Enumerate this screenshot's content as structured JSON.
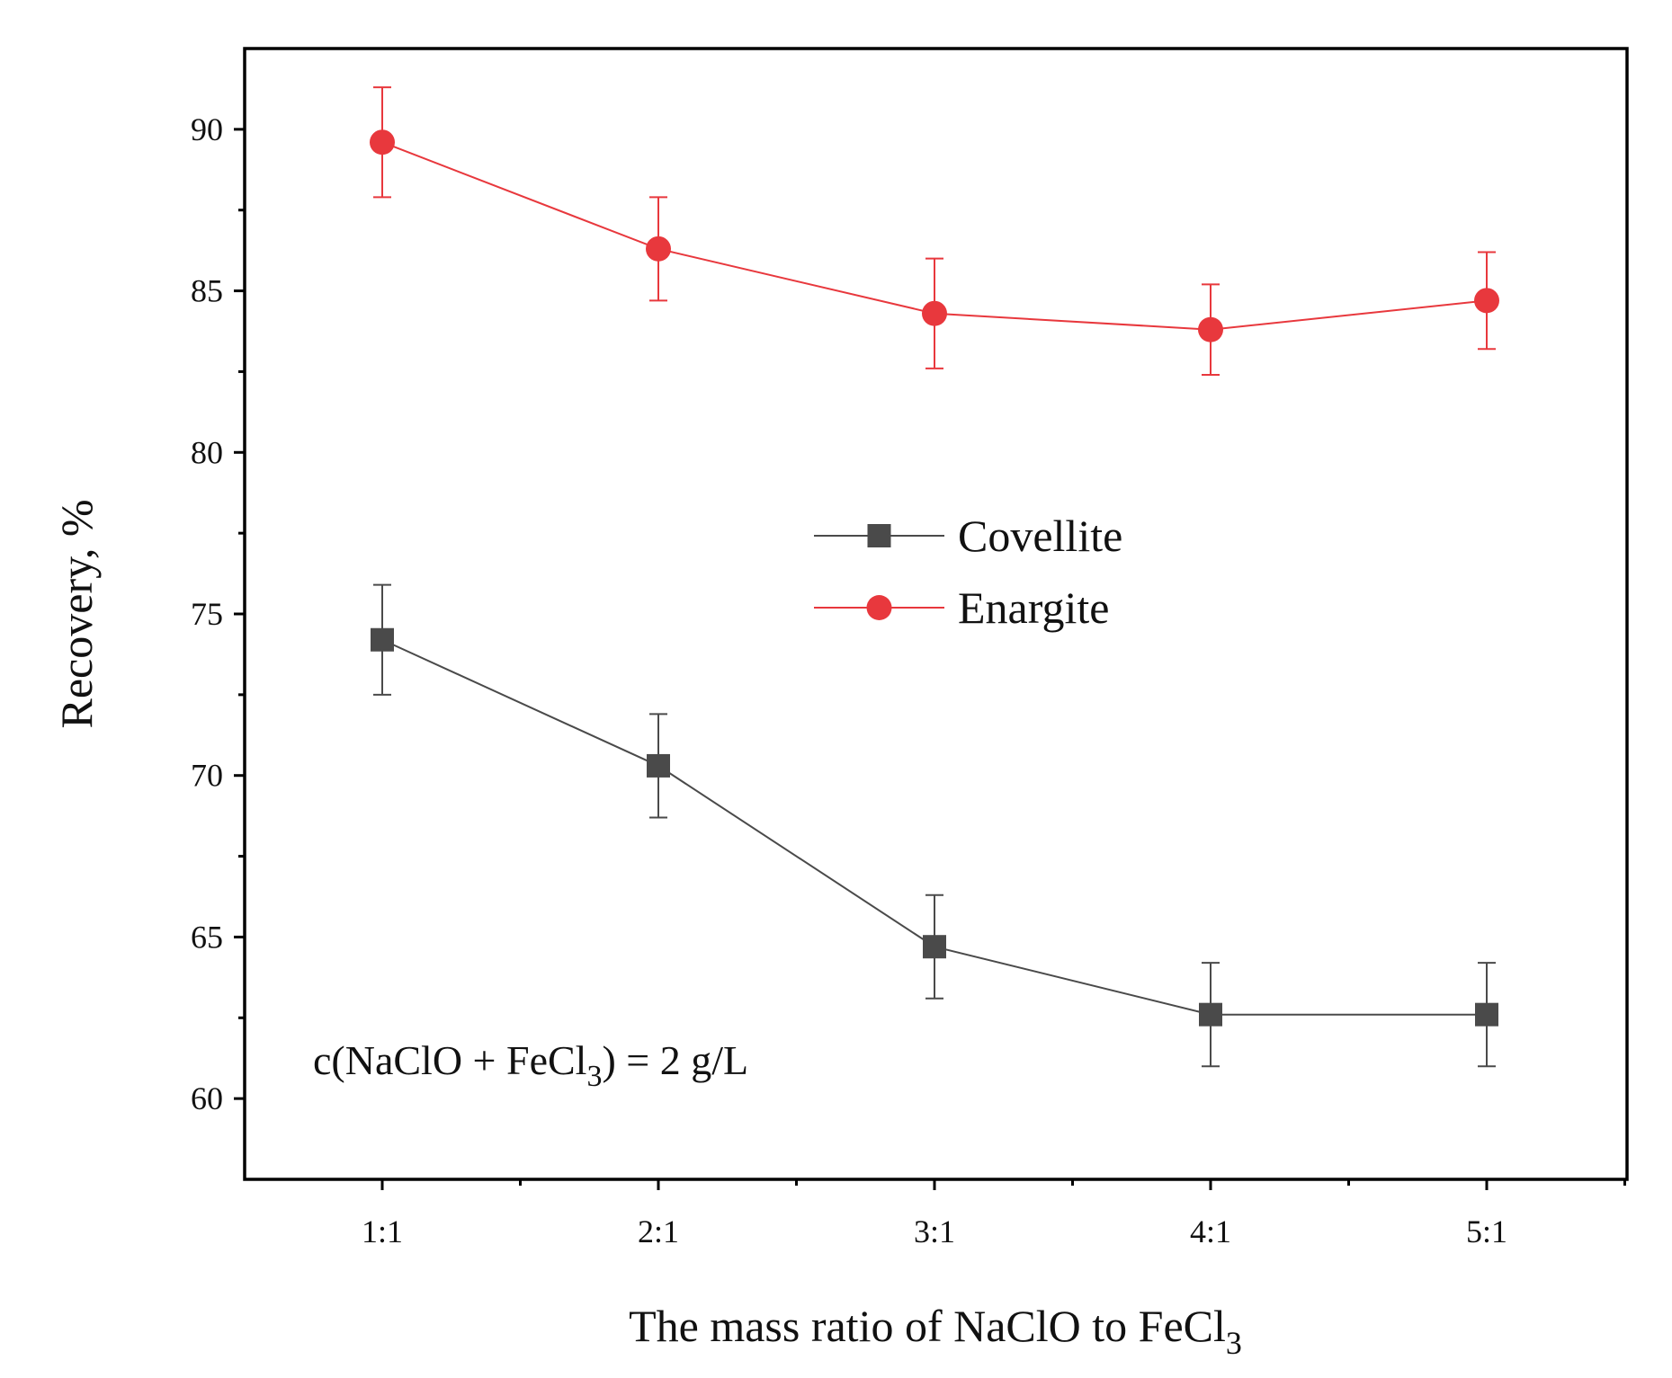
{
  "chart_data": {
    "type": "line",
    "title": "",
    "xlabel": "The mass ratio of NaClO to FeCl",
    "xlabel_sub": "3",
    "ylabel": "Recovery, %",
    "categories": [
      "1:1",
      "2:1",
      "3:1",
      "4:1",
      "5:1"
    ],
    "ylim": [
      57.5,
      92.5
    ],
    "yticks": [
      60,
      65,
      70,
      75,
      80,
      85,
      90
    ],
    "series": [
      {
        "name": "Covellite",
        "marker": "square",
        "color": "#4a4a4a",
        "values": [
          74.2,
          70.3,
          64.7,
          62.6,
          62.6
        ],
        "errors": [
          1.7,
          1.6,
          1.6,
          1.6,
          1.6
        ]
      },
      {
        "name": "Enargite",
        "marker": "circle",
        "color": "#e8383d",
        "values": [
          89.6,
          86.3,
          84.3,
          83.8,
          84.7
        ],
        "errors": [
          1.7,
          1.6,
          1.7,
          1.4,
          1.5
        ]
      }
    ],
    "legend_position": "center",
    "annotation": {
      "prefix": "c(NaClO + FeCl",
      "sub": "3",
      "suffix": ") = 2 g/L"
    }
  }
}
